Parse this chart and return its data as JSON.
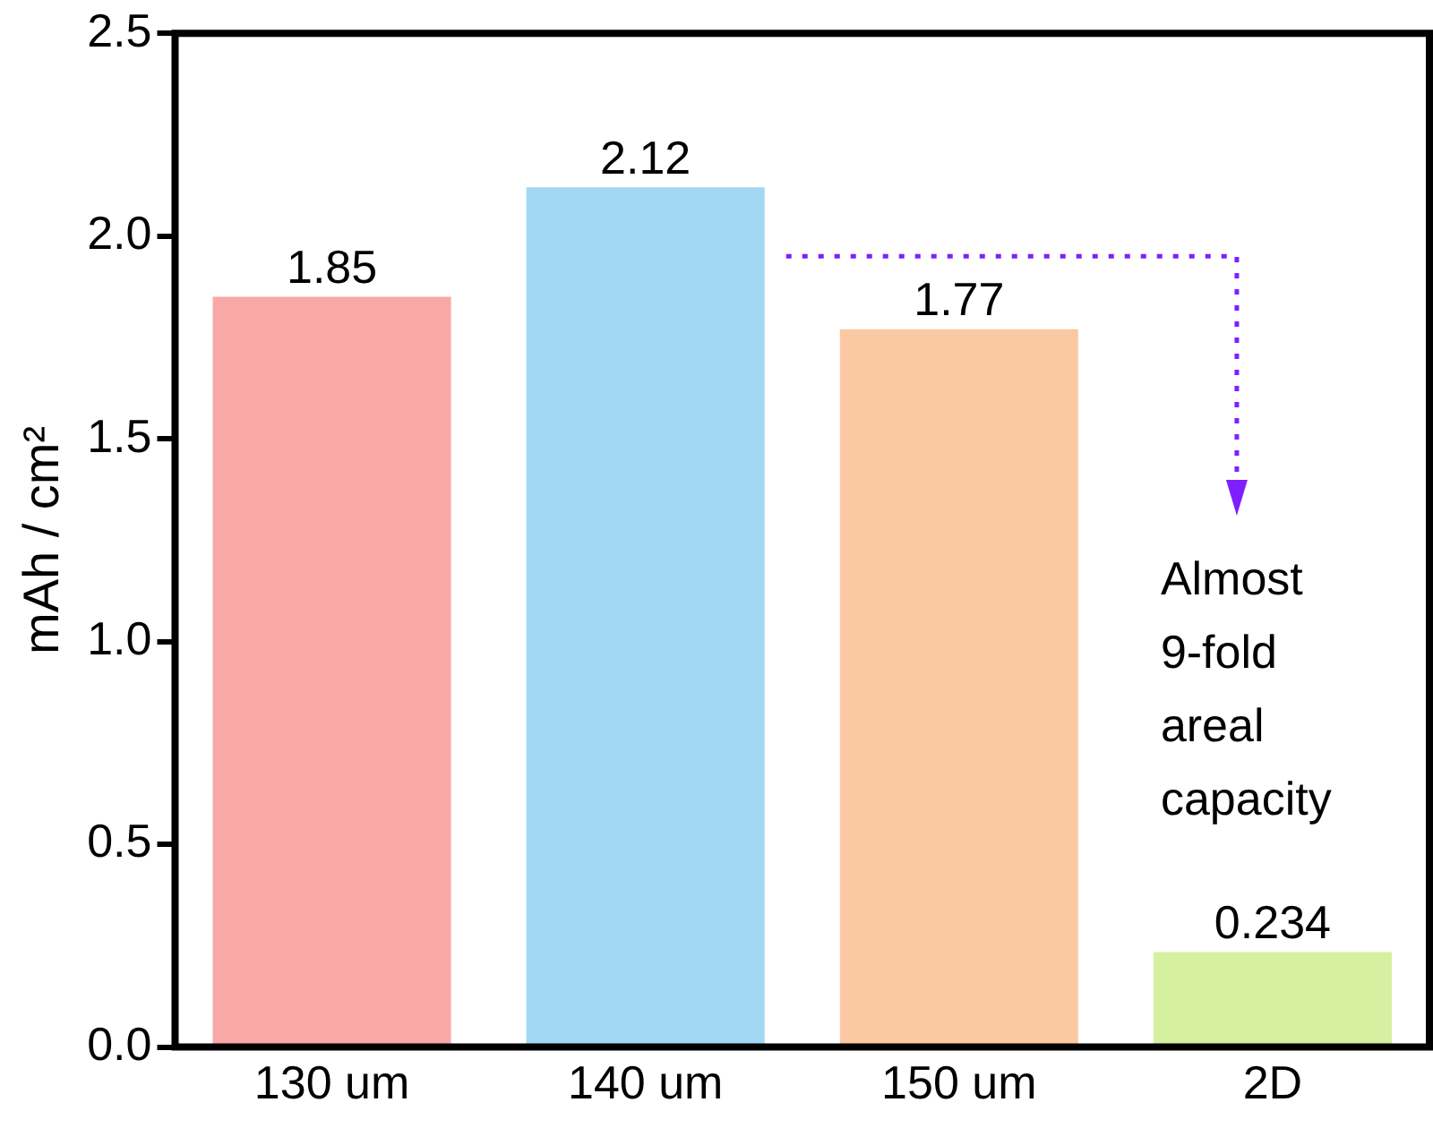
{
  "chart_data": {
    "type": "bar",
    "ylabel": "mAh / cm²",
    "categories": [
      "130 um",
      "140 um",
      "150 um",
      "2D"
    ],
    "values": [
      1.85,
      2.12,
      1.77,
      0.234
    ],
    "colors": [
      "#f9a8a8",
      "#a3d8f5",
      "#fac9a3",
      "#d4f0a0"
    ],
    "ylim": [
      0,
      2.5
    ],
    "yticks": [
      {
        "value": 0,
        "label": "0.0"
      },
      0.5,
      {
        "value": 1,
        "label": "1.0"
      },
      1.5,
      {
        "value": 2,
        "label": "2.0"
      },
      2.5
    ],
    "data_labels": true,
    "grid": false,
    "legend": false,
    "annotations": [
      "Almost 9-fold areal capacity"
    ]
  }
}
